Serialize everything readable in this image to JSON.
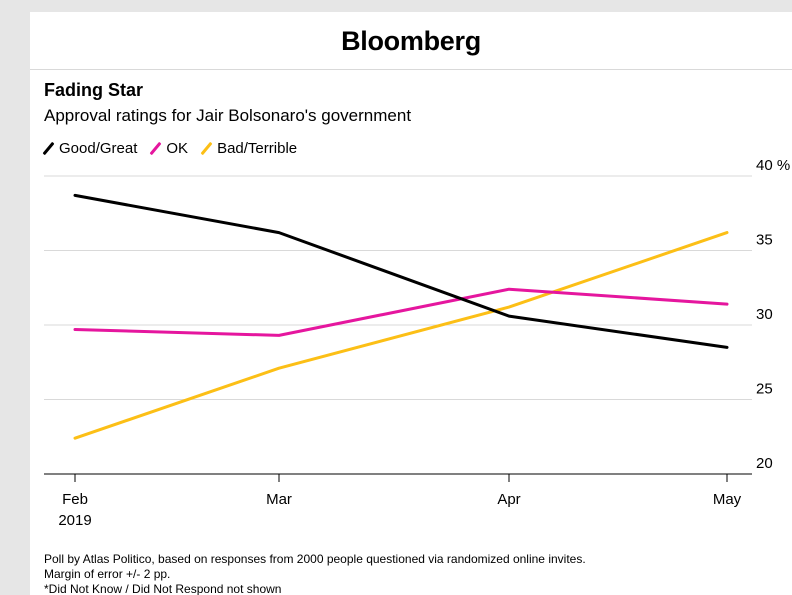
{
  "brand": "Bloomberg",
  "colors": {
    "good_great": "#000000",
    "ok": "#e5169e",
    "bad_terrible": "#fcbf16",
    "grid": "#d9d9d9",
    "background": "#e6e6e6"
  },
  "footnote": {
    "line1": "Poll by Atlas Politico, based on responses from 2000 people questioned via randomized online invites.",
    "line2": "Margin of error +/- 2 pp.",
    "line3": "*Did Not Know / Did Not Respond not shown"
  },
  "chart_data": {
    "type": "line",
    "title": "Fading Star",
    "subtitle": "Approval ratings for Jair Bolsonaro's government",
    "x": [
      "Feb",
      "Mar",
      "Apr",
      "May"
    ],
    "x_sublabel": "2019",
    "ylim": [
      20,
      40
    ],
    "yticks": [
      20,
      25,
      30,
      35,
      40
    ],
    "ytick_labels": [
      "20",
      "25",
      "30",
      "35",
      "40 %"
    ],
    "grid": true,
    "y_axis_side": "right",
    "legend_position": "top-left",
    "series": [
      {
        "name": "Good/Great",
        "color": "#000000",
        "values": [
          38.7,
          36.2,
          30.6,
          28.5
        ]
      },
      {
        "name": "OK",
        "color": "#e5169e",
        "values": [
          29.7,
          29.3,
          32.4,
          31.4
        ]
      },
      {
        "name": "Bad/Terrible",
        "color": "#fcbf16",
        "values": [
          22.4,
          27.1,
          31.2,
          36.2
        ]
      }
    ]
  }
}
